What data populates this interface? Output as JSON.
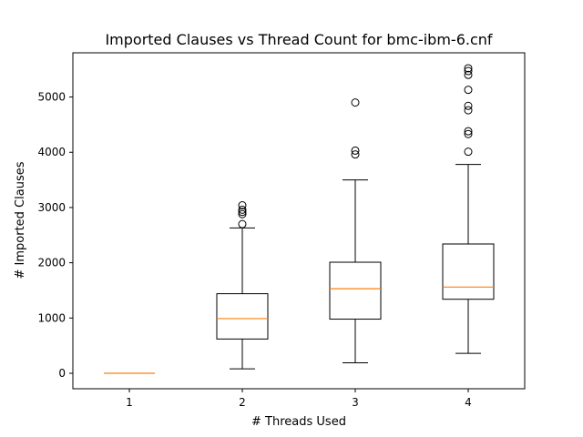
{
  "chart_data": {
    "type": "box",
    "title": "Imported Clauses vs Thread Count for bmc-ibm-6.cnf",
    "xlabel": "# Threads Used",
    "ylabel": "# Imported Clauses",
    "categories": [
      "1",
      "2",
      "3",
      "4"
    ],
    "ylim": [
      -280,
      5800
    ],
    "yticks": [
      0,
      1000,
      2000,
      3000,
      4000,
      5000
    ],
    "yticklabels": [
      "0",
      "1000",
      "2000",
      "3000",
      "4000",
      "5000"
    ],
    "boxes": [
      {
        "category": "1",
        "whisker_low": 0,
        "q1": 0,
        "median": 0,
        "q3": 0,
        "whisker_high": 0,
        "fliers": []
      },
      {
        "category": "2",
        "whisker_low": 80,
        "q1": 620,
        "median": 990,
        "q3": 1440,
        "whisker_high": 2630,
        "fliers": [
          2700,
          2880,
          2920,
          2960,
          3040
        ]
      },
      {
        "category": "3",
        "whisker_low": 190,
        "q1": 980,
        "median": 1530,
        "q3": 2010,
        "whisker_high": 3500,
        "fliers": [
          3960,
          4030,
          4900
        ]
      },
      {
        "category": "4",
        "whisker_low": 360,
        "q1": 1340,
        "median": 1560,
        "q3": 2340,
        "whisker_high": 3780,
        "fliers": [
          4010,
          4330,
          4380,
          4760,
          4840,
          5130,
          5400,
          5470,
          5520
        ]
      }
    ],
    "colors": {
      "box": "#000000",
      "median": "#ff7f0e",
      "flier": "#000000"
    }
  }
}
